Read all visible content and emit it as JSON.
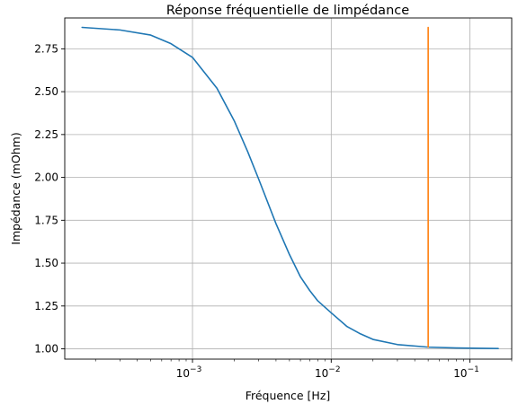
{
  "chart_data": {
    "type": "line",
    "title": "Réponse fréquentielle de limpédance",
    "xlabel": "Fréquence [Hz]",
    "ylabel": "Impédance (mOhm)",
    "xscale": "log",
    "xlim": [
      0.00012,
      0.2
    ],
    "ylim": [
      0.94,
      2.93
    ],
    "grid": true,
    "x_ticks": [
      {
        "value": 0.001,
        "base": "10",
        "exp": "−3"
      },
      {
        "value": 0.01,
        "base": "10",
        "exp": "−2"
      },
      {
        "value": 0.1,
        "base": "10",
        "exp": "−1"
      }
    ],
    "y_ticks": [
      {
        "value": 1.0,
        "label": "1.00"
      },
      {
        "value": 1.25,
        "label": "1.25"
      },
      {
        "value": 1.5,
        "label": "1.50"
      },
      {
        "value": 1.75,
        "label": "1.75"
      },
      {
        "value": 2.0,
        "label": "2.00"
      },
      {
        "value": 2.25,
        "label": "2.25"
      },
      {
        "value": 2.5,
        "label": "2.50"
      },
      {
        "value": 2.75,
        "label": "2.75"
      }
    ],
    "series": [
      {
        "color": "#1f77b4",
        "x": [
          0.00016,
          0.0003,
          0.0005,
          0.0007,
          0.001,
          0.0015,
          0.002,
          0.0025,
          0.003,
          0.004,
          0.005,
          0.006,
          0.007,
          0.008,
          0.01,
          0.013,
          0.016,
          0.02,
          0.03,
          0.05,
          0.08,
          0.12,
          0.16
        ],
        "y": [
          2.875,
          2.86,
          2.83,
          2.78,
          2.7,
          2.52,
          2.33,
          2.15,
          1.99,
          1.73,
          1.55,
          1.42,
          1.34,
          1.28,
          1.21,
          1.13,
          1.09,
          1.055,
          1.025,
          1.01,
          1.005,
          1.003,
          1.002
        ]
      },
      {
        "color": "#ff7f0e",
        "x": [
          0.05,
          0.05
        ],
        "y": [
          1.01,
          2.875
        ]
      }
    ]
  }
}
